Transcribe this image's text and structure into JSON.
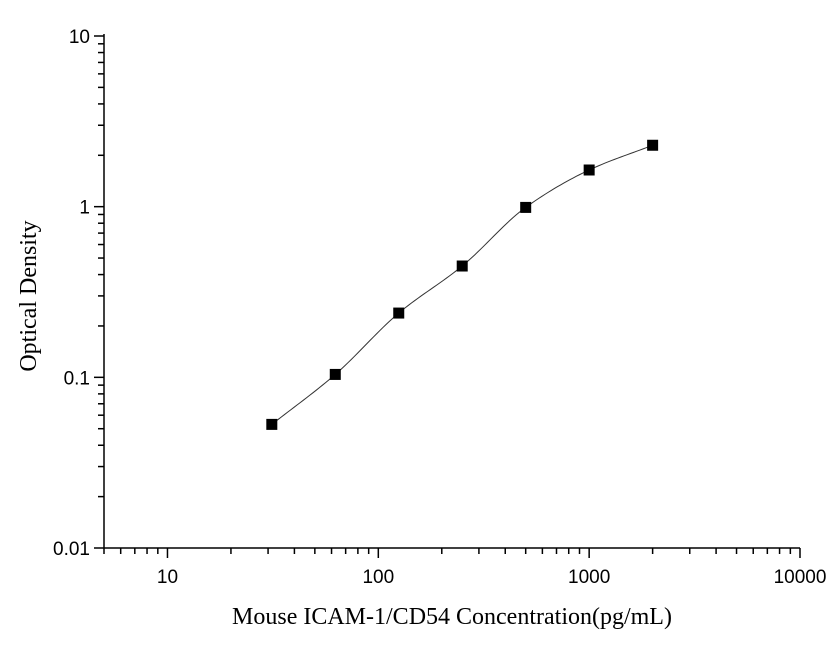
{
  "chart_data": {
    "type": "scatter",
    "xlabel": "Mouse ICAM-1/CD54 Concentration(pg/mL)",
    "ylabel": "Optical Density",
    "x_scale": "log",
    "y_scale": "log",
    "xlim": [
      5,
      10000
    ],
    "ylim": [
      0.01,
      10
    ],
    "x_ticks": [
      "10",
      "100",
      "1000",
      "10000"
    ],
    "y_ticks": [
      "0.01",
      "0.1",
      "1",
      "10"
    ],
    "grid": false,
    "legend": "none",
    "series": [
      {
        "x": [
          31.25,
          62.5,
          125,
          250,
          500,
          1000,
          2000
        ],
        "y": [
          0.053,
          0.104,
          0.238,
          0.449,
          0.99,
          1.64,
          2.29
        ],
        "marker": "square",
        "fit": "curve"
      }
    ],
    "marker_color": "#000000",
    "curve_color": "#333333"
  }
}
